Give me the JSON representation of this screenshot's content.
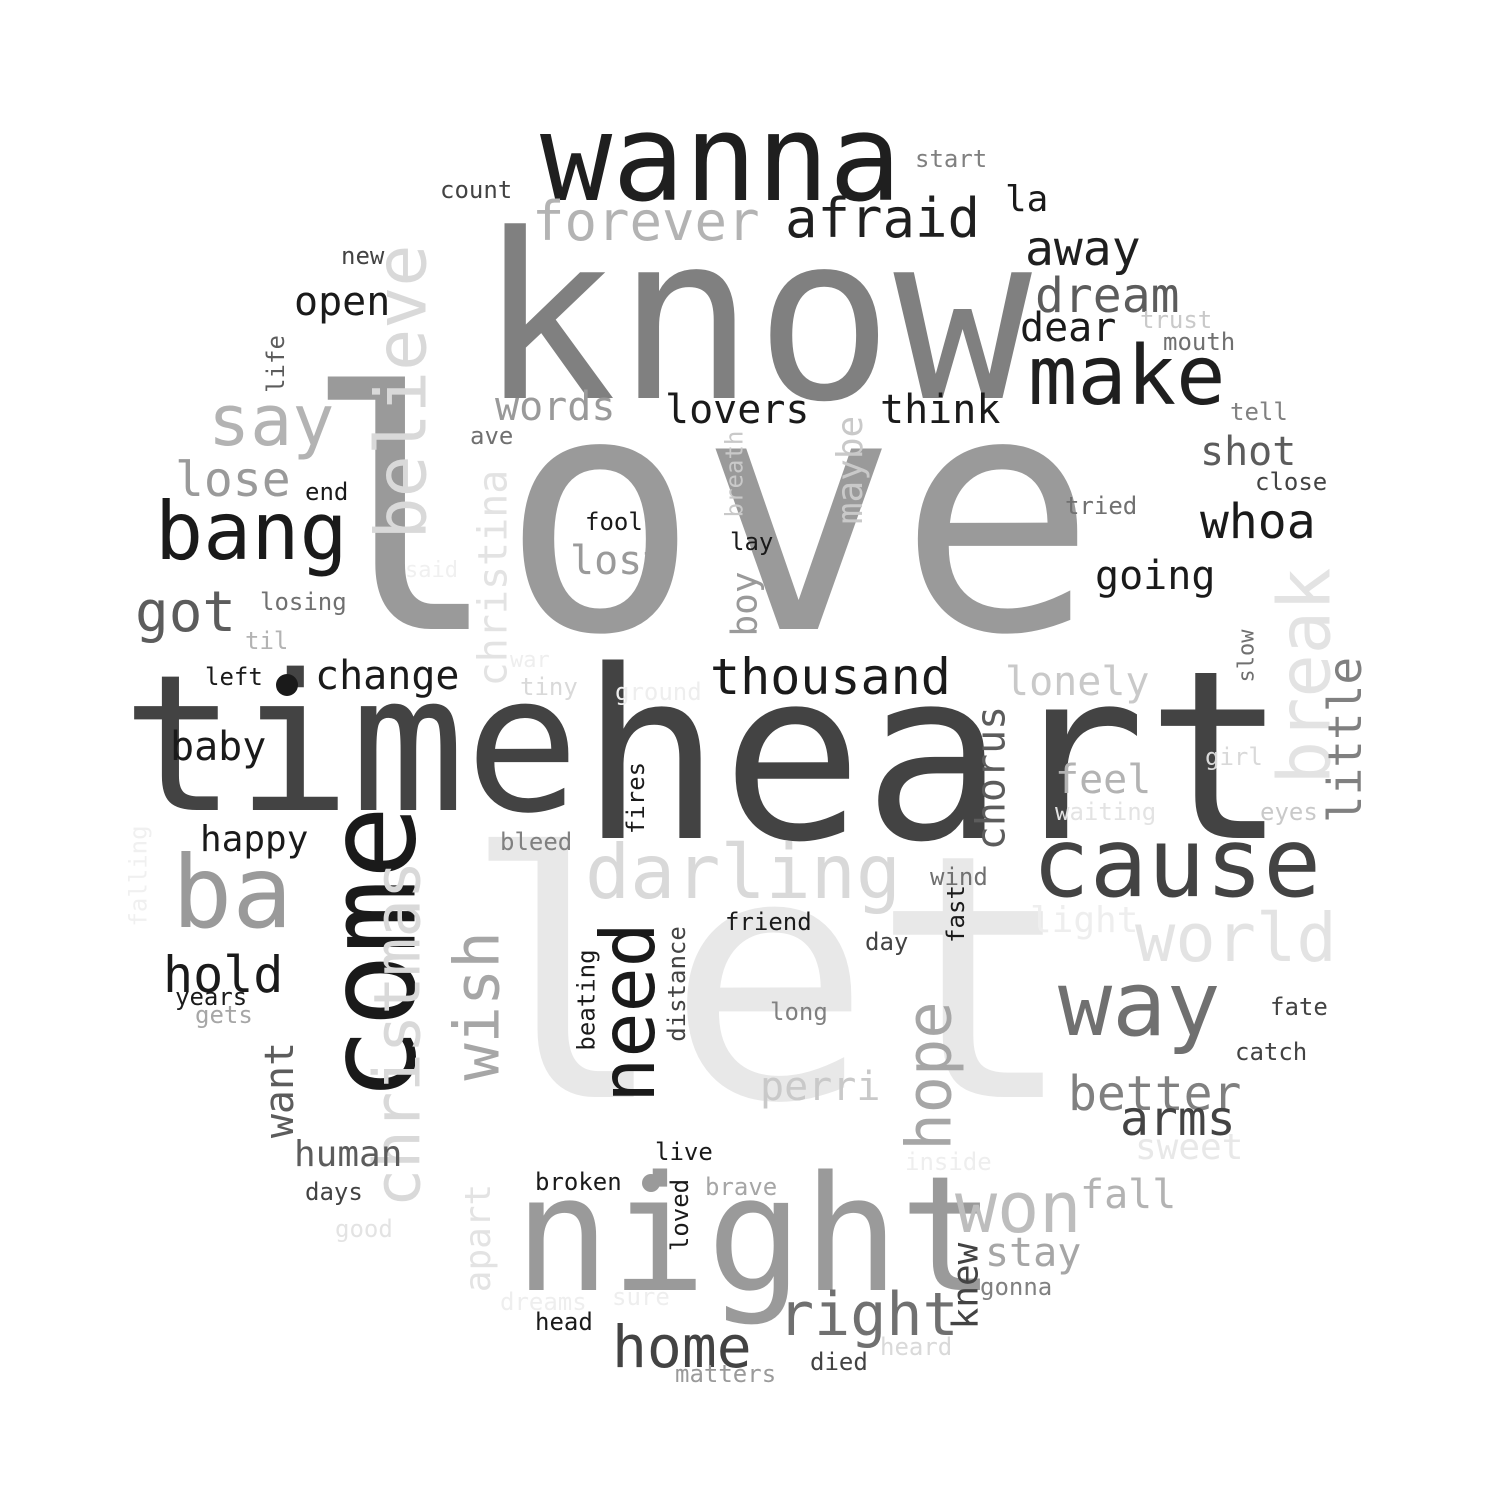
{
  "words": [
    {
      "id": "love",
      "text": "love",
      "color": "#9a9a9a"
    },
    {
      "id": "let",
      "text": "let",
      "color": "#e8e8e8"
    },
    {
      "id": "know",
      "text": "know",
      "color": "#808080"
    },
    {
      "id": "heart",
      "text": "heart",
      "color": "#434343"
    },
    {
      "id": "time",
      "text": "time",
      "color": "#434343"
    },
    {
      "id": "wanna",
      "text": "wanna",
      "color": "#1f1f1f"
    },
    {
      "id": "night",
      "text": "night",
      "color": "#9a9a9a"
    },
    {
      "id": "come",
      "text": "come",
      "color": "#1a1a1a"
    },
    {
      "id": "believe",
      "text": "believe",
      "color": "#d9d9d9"
    },
    {
      "id": "make",
      "text": "make",
      "color": "#1f1f1f"
    },
    {
      "id": "cause",
      "text": "cause",
      "color": "#434343"
    },
    {
      "id": "way",
      "text": "way",
      "color": "#707070"
    },
    {
      "id": "bang",
      "text": "bang",
      "color": "#1a1a1a"
    },
    {
      "id": "ba",
      "text": "ba",
      "color": "#9a9a9a"
    },
    {
      "id": "say",
      "text": "say",
      "color": "#b3b3b3"
    },
    {
      "id": "christmas",
      "text": "christmas",
      "color": "#d9d9d9"
    },
    {
      "id": "darling",
      "text": "darling",
      "color": "#d9d9d9"
    },
    {
      "id": "need",
      "text": "need",
      "color": "#1a1a1a"
    },
    {
      "id": "wish",
      "text": "wish",
      "color": "#a6a6a6"
    },
    {
      "id": "world",
      "text": "world",
      "color": "#e3e3e3"
    },
    {
      "id": "break",
      "text": "break",
      "color": "#e3e3e3"
    },
    {
      "id": "won",
      "text": "won",
      "color": "#bdbdbd"
    },
    {
      "id": "hope",
      "text": "hope",
      "color": "#a6a6a6"
    },
    {
      "id": "afraid",
      "text": "afraid",
      "color": "#1f1f1f"
    },
    {
      "id": "forever",
      "text": "forever",
      "color": "#b3b3b3"
    },
    {
      "id": "thousand",
      "text": "thousand",
      "color": "#1a1a1a"
    },
    {
      "id": "right",
      "text": "right",
      "color": "#707070"
    },
    {
      "id": "home",
      "text": "home",
      "color": "#434343"
    },
    {
      "id": "away",
      "text": "away",
      "color": "#1f1f1f"
    },
    {
      "id": "dream",
      "text": "dream",
      "color": "#5c5c5c"
    },
    {
      "id": "got",
      "text": "got",
      "color": "#5c5c5c"
    },
    {
      "id": "lose",
      "text": "lose",
      "color": "#9a9a9a"
    },
    {
      "id": "hold",
      "text": "hold",
      "color": "#1a1a1a"
    },
    {
      "id": "better",
      "text": "better",
      "color": "#808080"
    },
    {
      "id": "arms",
      "text": "arms",
      "color": "#434343"
    },
    {
      "id": "whoa",
      "text": "whoa",
      "color": "#1a1a1a"
    },
    {
      "id": "little",
      "text": "little",
      "color": "#808080"
    },
    {
      "id": "lovers",
      "text": "lovers",
      "color": "#1a1a1a"
    },
    {
      "id": "think",
      "text": "think",
      "color": "#1a1a1a"
    },
    {
      "id": "open",
      "text": "open",
      "color": "#1a1a1a"
    },
    {
      "id": "words",
      "text": "words",
      "color": "#9a9a9a"
    },
    {
      "id": "lost",
      "text": "lost",
      "color": "#9a9a9a"
    },
    {
      "id": "going",
      "text": "going",
      "color": "#1a1a1a"
    },
    {
      "id": "change",
      "text": "change",
      "color": "#1a1a1a"
    },
    {
      "id": "baby",
      "text": "baby",
      "color": "#1a1a1a"
    },
    {
      "id": "chorus",
      "text": "chorus",
      "color": "#5c5c5c"
    },
    {
      "id": "christina",
      "text": "christina",
      "color": "#e3e3e3"
    },
    {
      "id": "lonely",
      "text": "lonely",
      "color": "#c9c9c9"
    },
    {
      "id": "shot",
      "text": "shot",
      "color": "#5c5c5c"
    },
    {
      "id": "dear",
      "text": "dear",
      "color": "#1a1a1a"
    },
    {
      "id": "want",
      "text": "want",
      "color": "#5c5c5c"
    },
    {
      "id": "perri",
      "text": "perri",
      "color": "#c9c9c9"
    },
    {
      "id": "fall",
      "text": "fall",
      "color": "#b3b3b3"
    },
    {
      "id": "stay",
      "text": "stay",
      "color": "#a6a6a6"
    },
    {
      "id": "feel",
      "text": "feel",
      "color": "#b3b3b3"
    },
    {
      "id": "maybe",
      "text": "maybe",
      "color": "#c9c9c9"
    },
    {
      "id": "boy",
      "text": "boy",
      "color": "#9a9a9a"
    },
    {
      "id": "human",
      "text": "human",
      "color": "#5c5c5c"
    },
    {
      "id": "happy",
      "text": "happy",
      "color": "#1a1a1a"
    },
    {
      "id": "apart",
      "text": "apart",
      "color": "#e3e3e3"
    },
    {
      "id": "knew",
      "text": "knew",
      "color": "#434343"
    },
    {
      "id": "sweet",
      "text": "sweet",
      "color": "#e8e8e8"
    },
    {
      "id": "light",
      "text": "light",
      "color": "#eeeeee"
    },
    {
      "id": "la",
      "text": "la",
      "color": "#1a1a1a"
    },
    {
      "id": "start",
      "text": "start",
      "color": "#808080"
    },
    {
      "id": "count",
      "text": "count",
      "color": "#434343"
    },
    {
      "id": "new",
      "text": "new",
      "color": "#434343"
    },
    {
      "id": "life",
      "text": "life",
      "color": "#5c5c5c"
    },
    {
      "id": "trust",
      "text": "trust",
      "color": "#c9c9c9"
    },
    {
      "id": "mouth",
      "text": "mouth",
      "color": "#707070"
    },
    {
      "id": "tell",
      "text": "tell",
      "color": "#808080"
    },
    {
      "id": "ave",
      "text": "ave",
      "color": "#707070"
    },
    {
      "id": "end",
      "text": "end",
      "color": "#1a1a1a"
    },
    {
      "id": "breath",
      "text": "breath",
      "color": "#c9c9c9"
    },
    {
      "id": "tried",
      "text": "tried",
      "color": "#707070"
    },
    {
      "id": "close",
      "text": "close",
      "color": "#434343"
    },
    {
      "id": "fool",
      "text": "fool",
      "color": "#1a1a1a"
    },
    {
      "id": "lay",
      "text": "lay",
      "color": "#1a1a1a"
    },
    {
      "id": "said",
      "text": "said",
      "color": "#f0f0f0"
    },
    {
      "id": "losing",
      "text": "losing",
      "color": "#707070"
    },
    {
      "id": "til",
      "text": "til",
      "color": "#b3b3b3"
    },
    {
      "id": "war",
      "text": "war",
      "color": "#eeeeee"
    },
    {
      "id": "tiny",
      "text": "tiny",
      "color": "#d9d9d9"
    },
    {
      "id": "ground",
      "text": "ground",
      "color": "#eeeeee"
    },
    {
      "id": "left",
      "text": "left",
      "color": "#1a1a1a"
    },
    {
      "id": "slow",
      "text": "slow",
      "color": "#707070"
    },
    {
      "id": "girl",
      "text": "girl",
      "color": "#d9d9d9"
    },
    {
      "id": "waiting",
      "text": "waiting",
      "color": "#e3e3e3"
    },
    {
      "id": "eyes",
      "text": "eyes",
      "color": "#c9c9c9"
    },
    {
      "id": "fires",
      "text": "fires",
      "color": "#1a1a1a"
    },
    {
      "id": "bleed",
      "text": "bleed",
      "color": "#808080"
    },
    {
      "id": "falling",
      "text": "falling",
      "color": "#f0f0f0"
    },
    {
      "id": "wind",
      "text": "wind",
      "color": "#707070"
    },
    {
      "id": "friend",
      "text": "friend",
      "color": "#1a1a1a"
    },
    {
      "id": "fast",
      "text": "fast",
      "color": "#1a1a1a"
    },
    {
      "id": "day",
      "text": "day",
      "color": "#434343"
    },
    {
      "id": "distance",
      "text": "distance",
      "color": "#434343"
    },
    {
      "id": "beating",
      "text": "beating",
      "color": "#1a1a1a"
    },
    {
      "id": "years",
      "text": "years",
      "color": "#1a1a1a"
    },
    {
      "id": "gets",
      "text": "gets",
      "color": "#a6a6a6"
    },
    {
      "id": "fate",
      "text": "fate",
      "color": "#434343"
    },
    {
      "id": "catch",
      "text": "catch",
      "color": "#434343"
    },
    {
      "id": "long",
      "text": "long",
      "color": "#808080"
    },
    {
      "id": "live",
      "text": "live",
      "color": "#1a1a1a"
    },
    {
      "id": "broken",
      "text": "broken",
      "color": "#1a1a1a"
    },
    {
      "id": "brave",
      "text": "brave",
      "color": "#a6a6a6"
    },
    {
      "id": "inside",
      "text": "inside",
      "color": "#eeeeee"
    },
    {
      "id": "days",
      "text": "days",
      "color": "#434343"
    },
    {
      "id": "good",
      "text": "good",
      "color": "#e3e3e3"
    },
    {
      "id": "loved",
      "text": "loved",
      "color": "#1a1a1a"
    },
    {
      "id": "dreams",
      "text": "dreams",
      "color": "#eeeeee"
    },
    {
      "id": "sure",
      "text": "sure",
      "color": "#eeeeee"
    },
    {
      "id": "gonna",
      "text": "gonna",
      "color": "#808080"
    },
    {
      "id": "head",
      "text": "head",
      "color": "#1a1a1a"
    },
    {
      "id": "heard",
      "text": "heard",
      "color": "#d9d9d9"
    },
    {
      "id": "died",
      "text": "died",
      "color": "#434343"
    },
    {
      "id": "matters",
      "text": "matters",
      "color": "#9a9a9a"
    }
  ],
  "dots": [
    {
      "id": "dot-1",
      "color": "#1a1a1a"
    },
    {
      "id": "dot-2",
      "color": "#9a9a9a"
    }
  ]
}
